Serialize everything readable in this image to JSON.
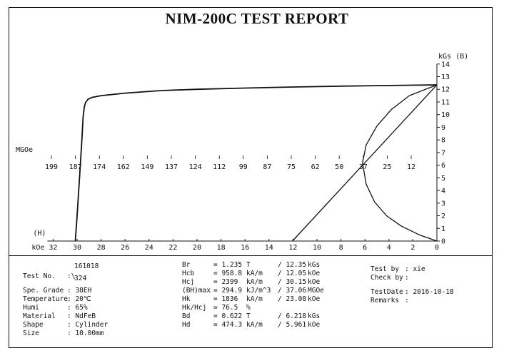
{
  "title": "NIM-200C TEST REPORT",
  "chart_data": {
    "type": "line",
    "title": "NIM-200C TEST REPORT",
    "x_axis": {
      "label_unit": "kOe",
      "label_quantity": "(H)",
      "range": [
        32,
        0
      ],
      "ticks": [
        32,
        30,
        28,
        26,
        24,
        22,
        20,
        18,
        16,
        14,
        12,
        10,
        8,
        6,
        4,
        2,
        0
      ]
    },
    "y_axis": {
      "label": "kGs (B)",
      "range": [
        0,
        14
      ],
      "ticks": [
        0,
        1,
        2,
        3,
        4,
        5,
        6,
        7,
        8,
        9,
        10,
        11,
        12,
        13,
        14
      ]
    },
    "energy_axis": {
      "label": "MGOe",
      "ticks": [
        "199",
        "187",
        "174",
        "162",
        "149",
        "137",
        "124",
        "112",
        "99",
        "87",
        "75",
        "62",
        "50",
        "37",
        "25",
        "12"
      ]
    },
    "series": [
      {
        "x": [
          30.15,
          30.0,
          29.8,
          29.6,
          29.5,
          29.4,
          29.3,
          29.1,
          28.8,
          28.0,
          26.0,
          23.0,
          20.0,
          16.0,
          12.0,
          8.0,
          4.0,
          0.0
        ],
        "y": [
          0.0,
          2.0,
          5.0,
          8.0,
          9.8,
          10.6,
          10.95,
          11.2,
          11.35,
          11.5,
          11.7,
          11.9,
          12.0,
          12.1,
          12.18,
          12.25,
          12.3,
          12.35
        ]
      },
      {
        "x": [
          12.05,
          0.0
        ],
        "y": [
          0.0,
          12.35
        ]
      },
      {
        "x": [
          0.0,
          1.5,
          3.0,
          4.2,
          5.2,
          5.9,
          6.2,
          5.9,
          5.0,
          3.8,
          2.3,
          0.0
        ],
        "y": [
          0.0,
          0.5,
          1.2,
          2.0,
          3.1,
          4.5,
          6.2,
          7.6,
          9.1,
          10.4,
          11.5,
          12.35
        ]
      }
    ]
  },
  "results": [
    {
      "name": "Br",
      "si": "= 1.235",
      "si_unit": "T",
      "alt": "/ 12.35",
      "alt_unit": "kGs"
    },
    {
      "name": "Hcb",
      "si": "= 958.8",
      "si_unit": "kA/m",
      "alt": "/ 12.05",
      "alt_unit": "kOe"
    },
    {
      "name": "Hcj",
      "si": "= 2399",
      "si_unit": "kA/m",
      "alt": "/ 30.15",
      "alt_unit": "kOe"
    },
    {
      "name": "(BH)max",
      "si": "= 294.9",
      "si_unit": "kJ/m^3",
      "alt": "/ 37.06",
      "alt_unit": "MGOe"
    },
    {
      "name": "Hk",
      "si": "= 1836",
      "si_unit": "kA/m",
      "alt": "/ 23.08",
      "alt_unit": "kOe"
    },
    {
      "name": "Hk/Hcj",
      "si": "= 76.5",
      "si_unit": "%",
      "alt": "",
      "alt_unit": ""
    },
    {
      "name": "Bd",
      "si": "= 0.622",
      "si_unit": "T",
      "alt": "/ 6.218",
      "alt_unit": "kGs"
    },
    {
      "name": "Hd",
      "si": "= 474.3",
      "si_unit": "kA/m",
      "alt": "/ 5.961",
      "alt_unit": "kOe"
    }
  ],
  "sample": {
    "test_no_label": "Test No.",
    "test_no_value_1": "161018",
    "test_no_value_2": "324",
    "grade_label": "Spe. Grade",
    "grade_value": ": 38EH",
    "temp_label": "Temperature",
    "temp_value": ": 20℃",
    "humi_label": "Humi",
    "humi_value": ": 65%",
    "material_label": "Material",
    "material_value": ": NdFeB",
    "shape_label": "Shape",
    "shape_value": ": Cylinder",
    "size_label": "Size",
    "size_value": ": 10.00mm"
  },
  "operator": {
    "test_by_label": "Test by",
    "test_by_value": ": xie",
    "check_by_label": "Check by",
    "check_by_value": ":",
    "date_label": "TestDate",
    "date_value": ": 2016-10-18",
    "remarks_label": "Remarks",
    "remarks_value": ":"
  }
}
